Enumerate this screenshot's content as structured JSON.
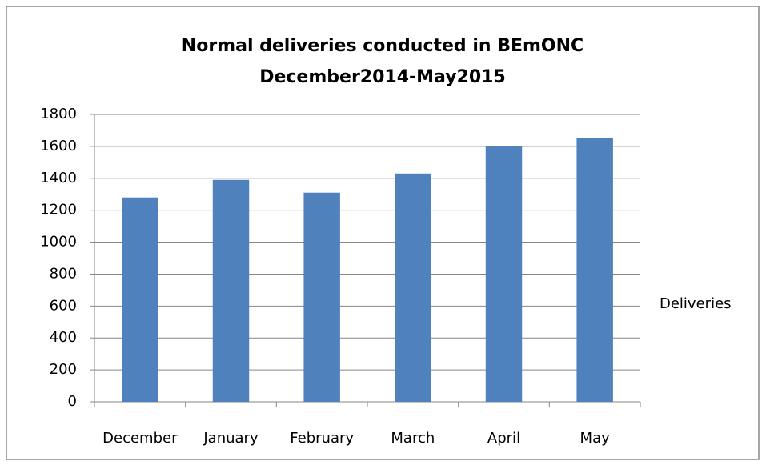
{
  "chart_data": {
    "type": "bar",
    "title": [
      "Normal deliveries conducted in  BEmONC",
      "December2014-May2015"
    ],
    "categories": [
      "December",
      "January",
      "February",
      "March",
      "April",
      "May"
    ],
    "series": [
      {
        "name": "Deliveries",
        "color": "#4f81bd",
        "values": [
          1280,
          1390,
          1310,
          1430,
          1600,
          1650
        ]
      }
    ],
    "ylim": [
      0,
      1800
    ],
    "yticks": [
      0,
      200,
      400,
      600,
      800,
      1000,
      1200,
      1400,
      1600,
      1800
    ],
    "grid": true,
    "legend": "right"
  }
}
